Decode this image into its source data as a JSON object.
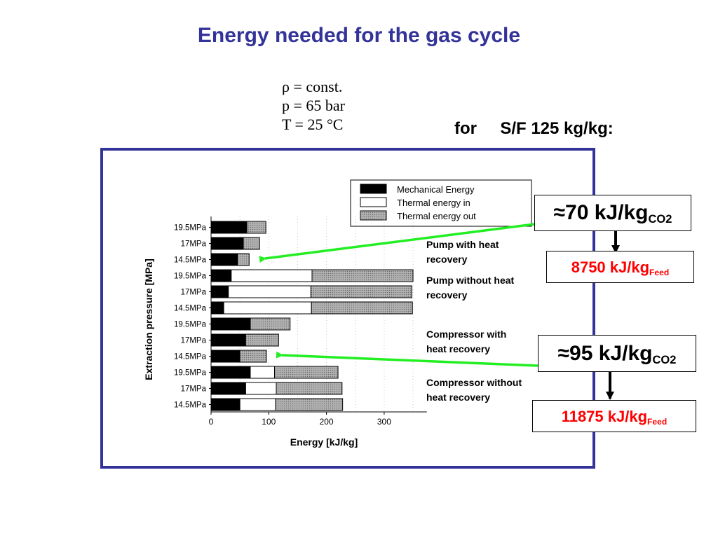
{
  "title": "Energy needed for  the gas cycle",
  "conditions": [
    "ρ = const.",
    "p = 65   bar",
    "T = 25  °C"
  ],
  "for_label": "for     S/F 125 kg/kg:",
  "callouts": {
    "pump_co2": {
      "approx": "≈",
      "value": "70 kJ/kg",
      "sub": "CO2"
    },
    "pump_feed": {
      "value": "8750 kJ/kg",
      "sub": "Feed"
    },
    "comp_co2": {
      "approx": "≈",
      "value": "95 kJ/kg",
      "sub": "CO2"
    },
    "comp_feed": {
      "value": "11875 kJ/kg",
      "sub": "Feed"
    }
  },
  "colors": {
    "title": "#333399",
    "frame": "#333399",
    "arrow_green": "#22ee22",
    "red": "#ff0000",
    "mechanical": "#000000",
    "thermal_in": "#ffffff",
    "thermal_out": "#a8a8a8"
  },
  "chart_data": {
    "type": "bar",
    "orientation": "horizontal",
    "stacked": true,
    "xlabel": "Energy [kJ/kg]",
    "ylabel": "Extraction pressure [MPa]",
    "xlim": [
      0,
      380
    ],
    "xticks": [
      0,
      100,
      200,
      300
    ],
    "categories": [
      "19.5MPa",
      "17MPa",
      "14.5MPa",
      "19.5MPa",
      "17MPa",
      "14.5MPa",
      "19.5MPa",
      "17MPa",
      "14.5MPa",
      "19.5MPa",
      "17MPa",
      "14.5MPa"
    ],
    "series": [
      {
        "name": "Mechanical Energy",
        "values": [
          62,
          56,
          46,
          35,
          30,
          22,
          68,
          60,
          50,
          68,
          60,
          50
        ]
      },
      {
        "name": "Thermal energy in",
        "values": [
          0,
          0,
          0,
          140,
          143,
          152,
          0,
          0,
          0,
          42,
          53,
          62
        ]
      },
      {
        "name": "Thermal energy out",
        "values": [
          33,
          28,
          20,
          175,
          175,
          175,
          69,
          57,
          46,
          110,
          114,
          116
        ]
      }
    ],
    "group_labels": [
      "Pump with heat recovery",
      "Pump without heat recovery",
      "Compressor with heat recovery",
      "Compressor without heat recovery"
    ],
    "legend_position": "top-right"
  }
}
